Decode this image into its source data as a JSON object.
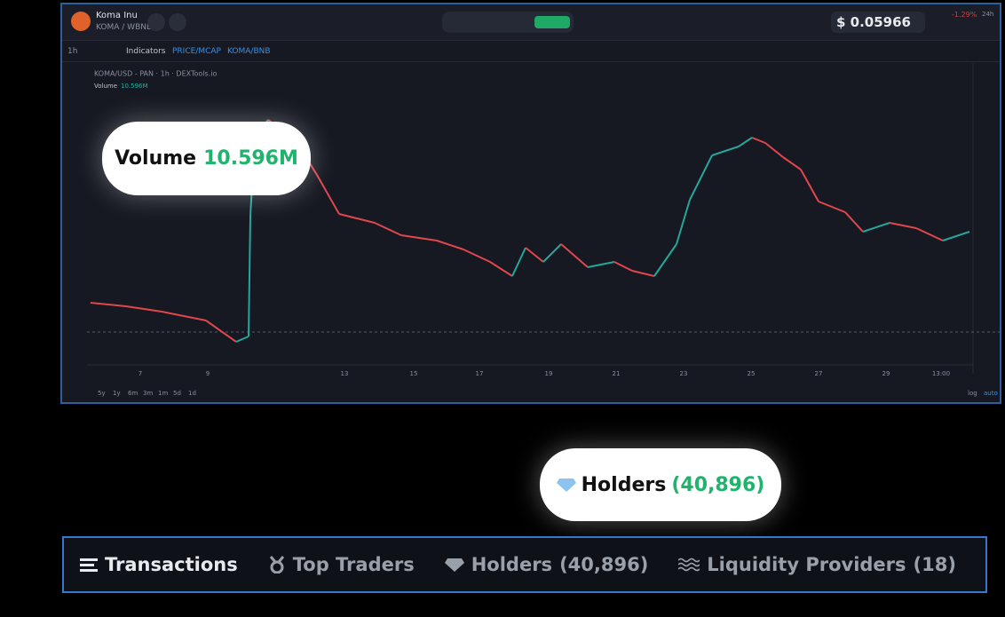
{
  "header": {
    "token_name": "Koma Inu",
    "pair": "KOMA / WBNB",
    "price": "$ 0.05966",
    "change": "-1.29%",
    "change_period": "24h"
  },
  "toolbar": {
    "interval": "1h",
    "indicators": "Indicators",
    "price_mcap": "PRICE/MCAP",
    "pair_toggle": "KOMA/BNB"
  },
  "chart": {
    "legend": "KOMA/USD - PAN · 1h · DEXTools.io",
    "volume_label": "Volume",
    "volume_value": "10.596M",
    "x_labels": [
      "7",
      "9",
      "13",
      "15",
      "17",
      "19",
      "21",
      "23",
      "25",
      "27",
      "29",
      "13:00"
    ],
    "ranges": [
      "5y",
      "1y",
      "6m",
      "3m",
      "1m",
      "5d",
      "1d"
    ],
    "log": "log",
    "auto": "auto"
  },
  "callouts": {
    "volume": {
      "label": "Volume",
      "value": "10.596M"
    },
    "holders": {
      "label": "Holders",
      "value": "(40,896)"
    }
  },
  "tabs": [
    {
      "label": "Transactions"
    },
    {
      "label": "Top Traders"
    },
    {
      "label": "Holders",
      "count": "(40,896)"
    },
    {
      "label": "Liquidity Providers",
      "count": "(18)"
    }
  ]
}
